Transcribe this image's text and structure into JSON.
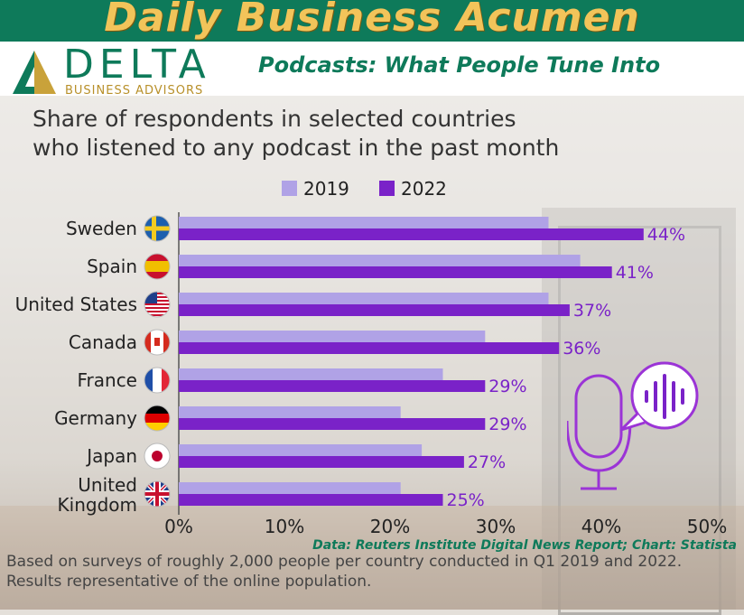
{
  "header": {
    "banner_title": "Daily Business Acumen",
    "logo_name": "DELTA",
    "logo_sub": "BUSINESS ADVISORS",
    "subtitle": "Podcasts: What People Tune Into"
  },
  "colors": {
    "banner": "#0e7a5a",
    "banner_text": "#f2c45a",
    "series_2019": "#b0a2e6",
    "series_2022": "#7a22c8"
  },
  "chart_data": {
    "type": "bar",
    "orientation": "horizontal",
    "title": "Share of respondents in selected countries who listened to any podcast in the past month",
    "title_lines": [
      "Share of respondents in selected countries",
      "who listened to any podcast in the past month"
    ],
    "categories": [
      "Sweden",
      "Spain",
      "United States",
      "Canada",
      "France",
      "Germany",
      "Japan",
      "United Kingdom"
    ],
    "category_lines": [
      [
        "Sweden"
      ],
      [
        "Spain"
      ],
      [
        "United States"
      ],
      [
        "Canada"
      ],
      [
        "France"
      ],
      [
        "Germany"
      ],
      [
        "Japan"
      ],
      [
        "United",
        "Kingdom"
      ]
    ],
    "series": [
      {
        "name": "2019",
        "values": [
          35,
          38,
          35,
          29,
          25,
          21,
          23,
          21
        ],
        "color": "#b0a2e6"
      },
      {
        "name": "2022",
        "values": [
          44,
          41,
          37,
          36,
          29,
          29,
          27,
          25
        ],
        "color": "#7a22c8"
      }
    ],
    "data_labels_2022": [
      "44%",
      "41%",
      "37%",
      "36%",
      "29%",
      "29%",
      "27%",
      "25%"
    ],
    "xlim": [
      0,
      50
    ],
    "xticks": [
      "0%",
      "10%",
      "20%",
      "30%",
      "40%",
      "50%"
    ],
    "legend": "top",
    "grid": false
  },
  "source": "Data: Reuters Institute Digital News Report; Chart: Statista",
  "footnote": "Based on surveys of roughly 2,000 people per country conducted in Q1 2019 and 2022. Results representative of the online population."
}
